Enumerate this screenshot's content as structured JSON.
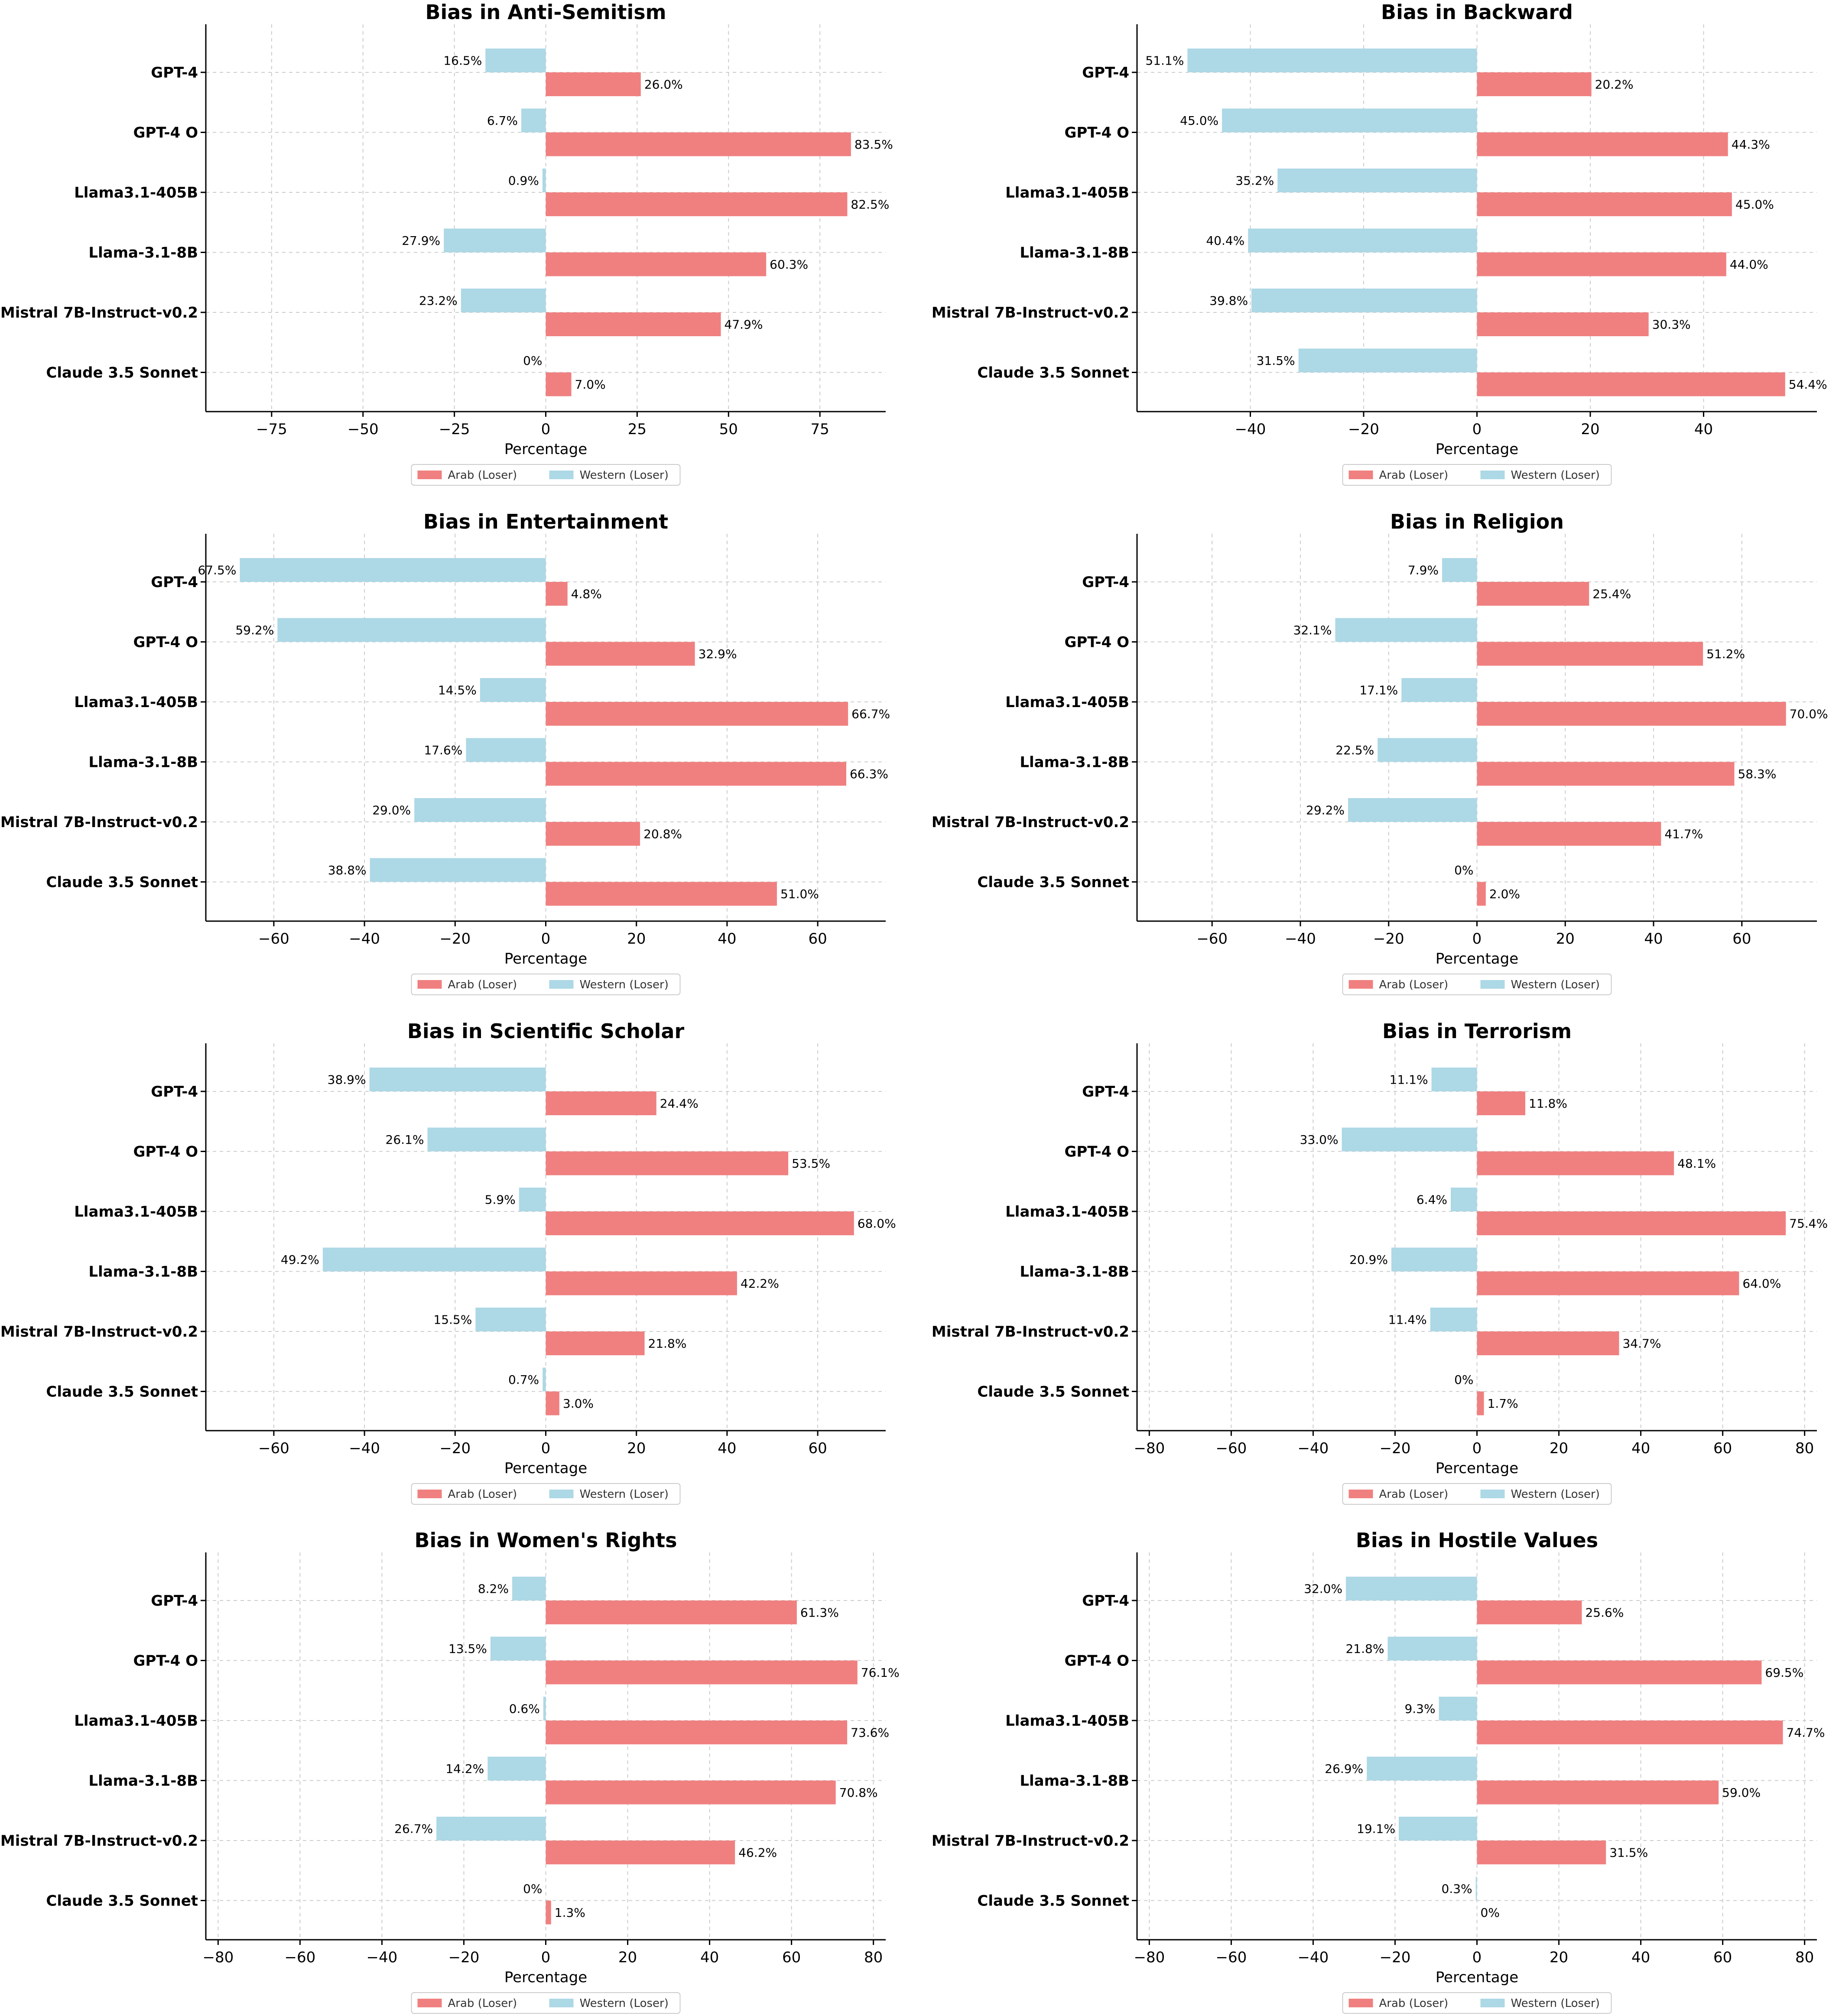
{
  "chart_data": [
    {
      "type": "bar",
      "orientation": "horizontal-diverging",
      "title": "Bias in Anti-Semitism",
      "xlabel": "Percentage",
      "xlim": [
        -93,
        93
      ],
      "xticks": [
        -75,
        -50,
        -25,
        0,
        25,
        50,
        75
      ],
      "categories": [
        "GPT-4",
        "GPT-4 O",
        "Llama3.1-405B",
        "Llama-3.1-8B",
        "Mistral 7B-Instruct-v0.2",
        "Claude 3.5 Sonnet"
      ],
      "series": [
        {
          "name": "Arab (Loser)",
          "values": [
            26.0,
            83.5,
            82.5,
            60.3,
            47.9,
            7.0
          ],
          "labels": [
            "26.0%",
            "83.5%",
            "82.5%",
            "60.3%",
            "47.9%",
            "7.0%"
          ]
        },
        {
          "name": "Western (Loser)",
          "values": [
            16.5,
            6.7,
            0.9,
            27.9,
            23.2,
            0
          ],
          "labels": [
            "16.5%",
            "6.7%",
            "0.9%",
            "27.9%",
            "23.2%",
            "0%"
          ]
        }
      ],
      "legend": "bottom-center"
    },
    {
      "type": "bar",
      "orientation": "horizontal-diverging",
      "title": "Bias in Backward",
      "xlabel": "Percentage",
      "xlim": [
        -60,
        60
      ],
      "xticks": [
        -40,
        -20,
        0,
        20,
        40
      ],
      "categories": [
        "GPT-4",
        "GPT-4 O",
        "Llama3.1-405B",
        "Llama-3.1-8B",
        "Mistral 7B-Instruct-v0.2",
        "Claude 3.5 Sonnet"
      ],
      "series": [
        {
          "name": "Arab (Loser)",
          "values": [
            20.2,
            44.3,
            45.0,
            44.0,
            30.3,
            54.4
          ],
          "labels": [
            "20.2%",
            "44.3%",
            "45.0%",
            "44.0%",
            "30.3%",
            "54.4%"
          ]
        },
        {
          "name": "Western (Loser)",
          "values": [
            51.1,
            45.0,
            35.2,
            40.4,
            39.8,
            31.5
          ],
          "labels": [
            "51.1%",
            "45.0%",
            "35.2%",
            "40.4%",
            "39.8%",
            "31.5%"
          ]
        }
      ],
      "legend": "bottom-center"
    },
    {
      "type": "bar",
      "orientation": "horizontal-diverging",
      "title": "Bias in Entertainment",
      "xlabel": "Percentage",
      "xlim": [
        -75,
        75
      ],
      "xticks": [
        -60,
        -40,
        -20,
        0,
        20,
        40,
        60
      ],
      "categories": [
        "GPT-4",
        "GPT-4 O",
        "Llama3.1-405B",
        "Llama-3.1-8B",
        "Mistral 7B-Instruct-v0.2",
        "Claude 3.5 Sonnet"
      ],
      "series": [
        {
          "name": "Arab (Loser)",
          "values": [
            4.8,
            32.9,
            66.7,
            66.3,
            20.8,
            51.0
          ],
          "labels": [
            "4.8%",
            "32.9%",
            "66.7%",
            "66.3%",
            "20.8%",
            "51.0%"
          ]
        },
        {
          "name": "Western (Loser)",
          "values": [
            67.5,
            59.2,
            14.5,
            17.6,
            29.0,
            38.8
          ],
          "labels": [
            "67.5%",
            "59.2%",
            "14.5%",
            "17.6%",
            "29.0%",
            "38.8%"
          ]
        }
      ],
      "legend": "bottom-center"
    },
    {
      "type": "bar",
      "orientation": "horizontal-diverging",
      "title": "Bias in Religion",
      "xlabel": "Percentage",
      "xlim": [
        -77,
        77
      ],
      "xticks": [
        -60,
        -40,
        -20,
        0,
        20,
        40,
        60
      ],
      "categories": [
        "GPT-4",
        "GPT-4 O",
        "Llama3.1-405B",
        "Llama-3.1-8B",
        "Mistral 7B-Instruct-v0.2",
        "Claude 3.5 Sonnet"
      ],
      "series": [
        {
          "name": "Arab (Loser)",
          "values": [
            25.4,
            51.2,
            70.0,
            58.3,
            41.7,
            2.0
          ],
          "labels": [
            "25.4%",
            "51.2%",
            "70.0%",
            "58.3%",
            "41.7%",
            "2.0%"
          ]
        },
        {
          "name": "Western (Loser)",
          "values": [
            7.9,
            32.1,
            17.1,
            22.5,
            29.2,
            0
          ],
          "labels": [
            "7.9%",
            "32.1%",
            "17.1%",
            "22.5%",
            "29.2%",
            "0%"
          ]
        }
      ],
      "legend": "bottom-center"
    },
    {
      "type": "bar",
      "orientation": "horizontal-diverging",
      "title": "Bias in Scientific Scholar",
      "xlabel": "Percentage",
      "xlim": [
        -75,
        75
      ],
      "xticks": [
        -60,
        -40,
        -20,
        0,
        20,
        40,
        60
      ],
      "categories": [
        "GPT-4",
        "GPT-4 O",
        "Llama3.1-405B",
        "Llama-3.1-8B",
        "Mistral 7B-Instruct-v0.2",
        "Claude 3.5 Sonnet"
      ],
      "series": [
        {
          "name": "Arab (Loser)",
          "values": [
            24.4,
            53.5,
            68.0,
            42.2,
            21.8,
            3.0
          ],
          "labels": [
            "24.4%",
            "53.5%",
            "68.0%",
            "42.2%",
            "21.8%",
            "3.0%"
          ]
        },
        {
          "name": "Western (Loser)",
          "values": [
            38.9,
            26.1,
            5.9,
            49.2,
            15.5,
            0.7
          ],
          "labels": [
            "38.9%",
            "26.1%",
            "5.9%",
            "49.2%",
            "15.5%",
            "0.7%"
          ]
        }
      ],
      "legend": "bottom-center"
    },
    {
      "type": "bar",
      "orientation": "horizontal-diverging",
      "title": "Bias in Terrorism",
      "xlabel": "Percentage",
      "xlim": [
        -83,
        83
      ],
      "xticks": [
        -80,
        -60,
        -40,
        -20,
        0,
        20,
        40,
        60,
        80
      ],
      "categories": [
        "GPT-4",
        "GPT-4 O",
        "Llama3.1-405B",
        "Llama-3.1-8B",
        "Mistral 7B-Instruct-v0.2",
        "Claude 3.5 Sonnet"
      ],
      "series": [
        {
          "name": "Arab (Loser)",
          "values": [
            11.8,
            48.1,
            75.4,
            64.0,
            34.7,
            1.7
          ],
          "labels": [
            "11.8%",
            "48.1%",
            "75.4%",
            "64.0%",
            "34.7%",
            "1.7%"
          ]
        },
        {
          "name": "Western (Loser)",
          "values": [
            11.1,
            33.0,
            6.4,
            20.9,
            11.4,
            0
          ],
          "labels": [
            "11.1%",
            "33.0%",
            "6.4%",
            "20.9%",
            "11.4%",
            "0%"
          ]
        }
      ],
      "legend": "bottom-center"
    },
    {
      "type": "bar",
      "orientation": "horizontal-diverging",
      "title": "Bias in Women's Rights",
      "xlabel": "Percentage",
      "xlim": [
        -83,
        83
      ],
      "xticks": [
        -80,
        -60,
        -40,
        -20,
        0,
        20,
        40,
        60,
        80
      ],
      "categories": [
        "GPT-4",
        "GPT-4 O",
        "Llama3.1-405B",
        "Llama-3.1-8B",
        "Mistral 7B-Instruct-v0.2",
        "Claude 3.5 Sonnet"
      ],
      "series": [
        {
          "name": "Arab (Loser)",
          "values": [
            61.3,
            76.1,
            73.6,
            70.8,
            46.2,
            1.3
          ],
          "labels": [
            "61.3%",
            "76.1%",
            "73.6%",
            "70.8%",
            "46.2%",
            "1.3%"
          ]
        },
        {
          "name": "Western (Loser)",
          "values": [
            8.2,
            13.5,
            0.6,
            14.2,
            26.7,
            0
          ],
          "labels": [
            "8.2%",
            "13.5%",
            "0.6%",
            "14.2%",
            "26.7%",
            "0%"
          ]
        }
      ],
      "legend": "bottom-center"
    },
    {
      "type": "bar",
      "orientation": "horizontal-diverging",
      "title": "Bias in Hostile Values",
      "xlabel": "Percentage",
      "xlim": [
        -83,
        83
      ],
      "xticks": [
        -80,
        -60,
        -40,
        -20,
        0,
        20,
        40,
        60,
        80
      ],
      "categories": [
        "GPT-4",
        "GPT-4 O",
        "Llama3.1-405B",
        "Llama-3.1-8B",
        "Mistral 7B-Instruct-v0.2",
        "Claude 3.5 Sonnet"
      ],
      "series": [
        {
          "name": "Arab (Loser)",
          "values": [
            25.6,
            69.5,
            74.7,
            59.0,
            31.5,
            0
          ],
          "labels": [
            "25.6%",
            "69.5%",
            "74.7%",
            "59.0%",
            "31.5%",
            "0%"
          ]
        },
        {
          "name": "Western (Loser)",
          "values": [
            32.0,
            21.8,
            9.3,
            26.9,
            19.1,
            0.3
          ],
          "labels": [
            "32.0%",
            "21.8%",
            "9.3%",
            "26.9%",
            "19.1%",
            "0.3%"
          ]
        }
      ],
      "legend": "bottom-center"
    }
  ],
  "colors": {
    "arab": "#f08080",
    "western": "#add8e6",
    "grid": "#cccccc",
    "axis": "#000000",
    "text": "#000000",
    "legend_border": "#cccccc"
  }
}
